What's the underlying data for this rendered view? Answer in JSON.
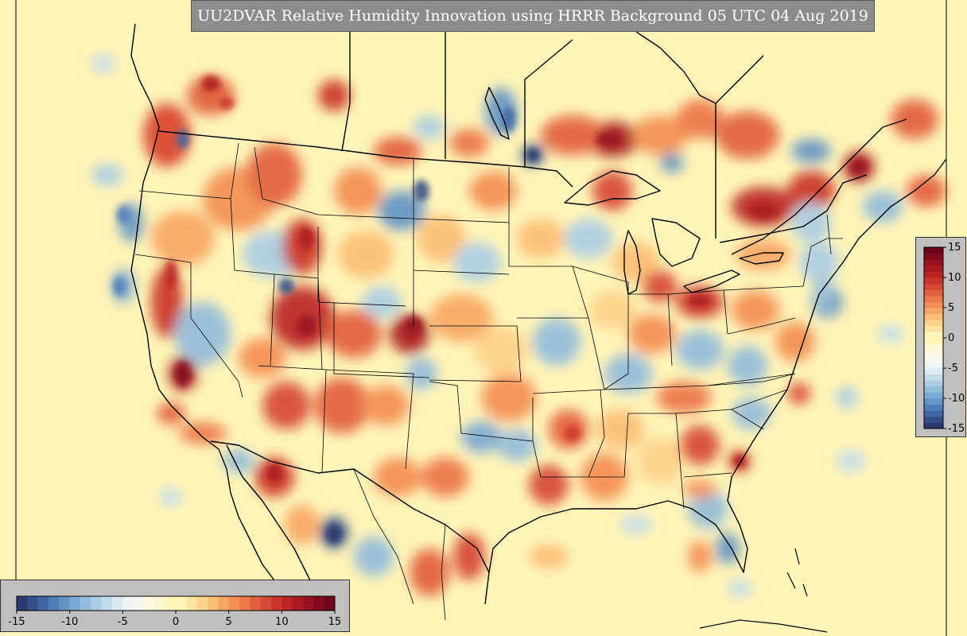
{
  "title": "UU2DVAR Relative Humidity Innovation using HRRR Background 05 UTC 04 Aug 2019",
  "colors": {
    "background": "#fff5b8",
    "border_lines": "#000000",
    "title_box": "#8c8c8c",
    "colorbar_panel": "#c0c0c0"
  },
  "colorbar": {
    "min": -15,
    "max": 15,
    "step": 1,
    "colors": [
      "#2b3b6b",
      "#34508a",
      "#3f66a4",
      "#4f7db8",
      "#6494c6",
      "#7ba9d2",
      "#93bcdc",
      "#abcde4",
      "#c3dceb",
      "#dbe9f1",
      "#eef3f6",
      "#f7f8f2",
      "#fcf9e4",
      "#fef6d0",
      "#fff5b8",
      "#fff5b8",
      "#ffe6a0",
      "#fdd28a",
      "#fbbd75",
      "#f8a663",
      "#f38f55",
      "#ec7749",
      "#e2603e",
      "#d64a35",
      "#c9362c",
      "#ba2525",
      "#a91a22",
      "#961220",
      "#820b1e",
      "#6e061c"
    ],
    "horizontal_ticks": [
      {
        "value": -15,
        "label": "-15"
      },
      {
        "value": -10,
        "label": "-10"
      },
      {
        "value": -5,
        "label": "-5"
      },
      {
        "value": 0,
        "label": "0"
      },
      {
        "value": 5,
        "label": "5"
      },
      {
        "value": 10,
        "label": "10"
      },
      {
        "value": 15,
        "label": "15"
      }
    ],
    "vertical_ticks": [
      {
        "value": 15,
        "label": "15"
      },
      {
        "value": 10,
        "label": "10"
      },
      {
        "value": 5,
        "label": "5"
      },
      {
        "value": 0,
        "label": "0"
      },
      {
        "value": -5,
        "label": "-5"
      },
      {
        "value": -10,
        "label": "-10"
      },
      {
        "value": -15,
        "label": "-15"
      }
    ]
  }
}
